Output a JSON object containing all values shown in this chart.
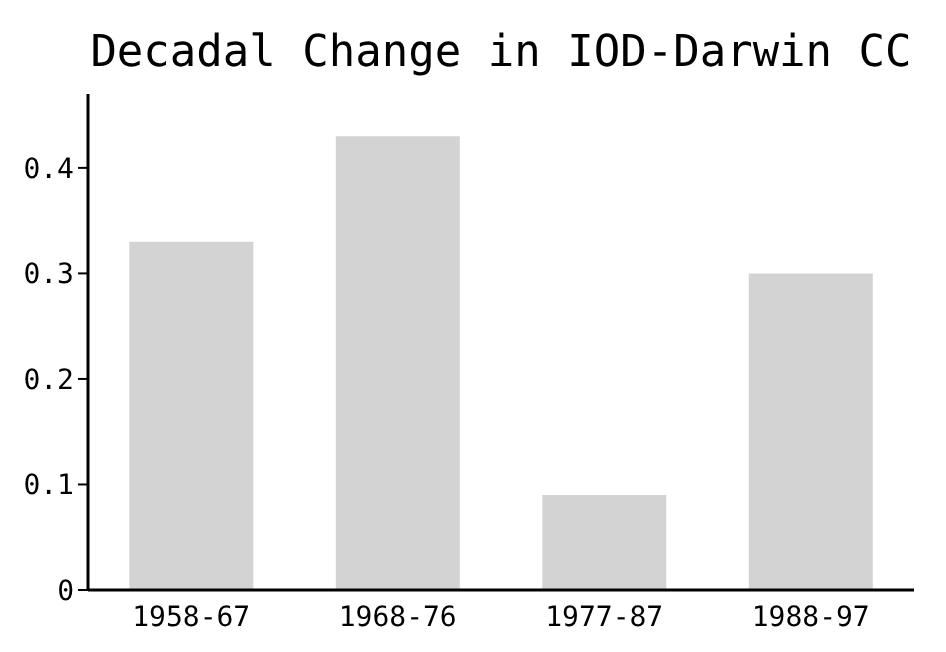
{
  "chart_data": {
    "type": "bar",
    "title": "Decadal Change in IOD-Darwin CC",
    "categories": [
      "1958-67",
      "1968-76",
      "1977-87",
      "1988-97"
    ],
    "values": [
      0.33,
      0.43,
      0.09,
      0.3
    ],
    "color": "#d3d3d3",
    "ylim": [
      0,
      0.47
    ],
    "yticks": [
      0,
      0.1,
      0.2,
      0.3,
      0.4
    ],
    "grid": false
  }
}
